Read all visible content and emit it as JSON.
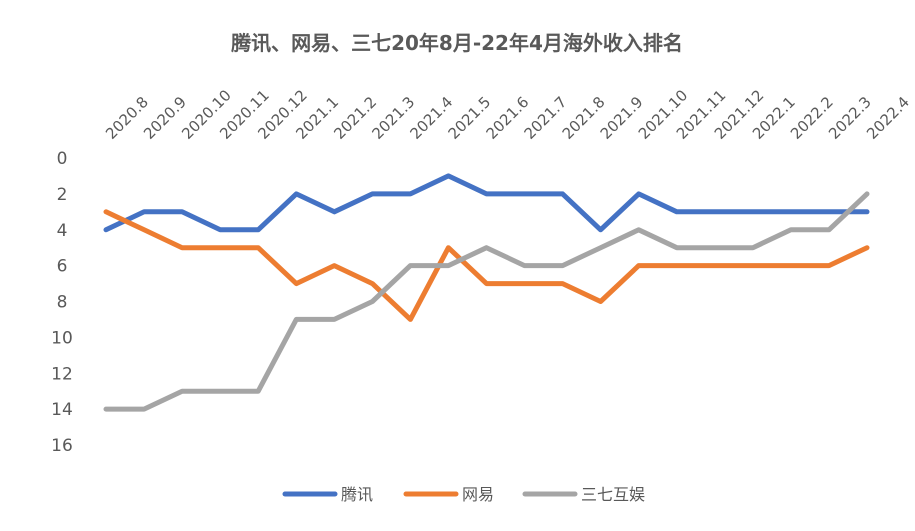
{
  "chart_data": {
    "type": "line",
    "title": "腾讯、网易、三七20年8月-22年4月海外收入排名",
    "xlabel": "",
    "ylabel": "",
    "categories": [
      "2020.8",
      "2020.9",
      "2020.10",
      "2020.11",
      "2020.12",
      "2021.1",
      "2021.2",
      "2021.3",
      "2021.4",
      "2021.5",
      "2021.6",
      "2021.7",
      "2021.8",
      "2021.9",
      "2021.10",
      "2021.11",
      "2021.12",
      "2022.1",
      "2022.2",
      "2022.3",
      "2022.4"
    ],
    "ylim": [
      0,
      16
    ],
    "y_reversed": true,
    "y_ticks": [
      0,
      2,
      4,
      6,
      8,
      10,
      12,
      14,
      16
    ],
    "x_axis_position": "top",
    "legend_position": "bottom",
    "grid": false,
    "series": [
      {
        "name": "腾讯",
        "color": "#4472C4",
        "values": [
          4,
          3,
          3,
          4,
          4,
          2,
          3,
          2,
          2,
          1,
          2,
          2,
          2,
          4,
          2,
          3,
          3,
          3,
          3,
          3,
          3
        ]
      },
      {
        "name": "网易",
        "color": "#ED7D31",
        "values": [
          3,
          4,
          5,
          5,
          5,
          7,
          6,
          7,
          9,
          5,
          7,
          7,
          7,
          8,
          6,
          6,
          6,
          6,
          6,
          6,
          5
        ]
      },
      {
        "name": "三七互娱",
        "color": "#A5A5A5",
        "values": [
          14,
          14,
          13,
          13,
          13,
          9,
          9,
          8,
          6,
          6,
          5,
          6,
          6,
          5,
          4,
          5,
          5,
          5,
          4,
          4,
          2
        ]
      }
    ]
  }
}
